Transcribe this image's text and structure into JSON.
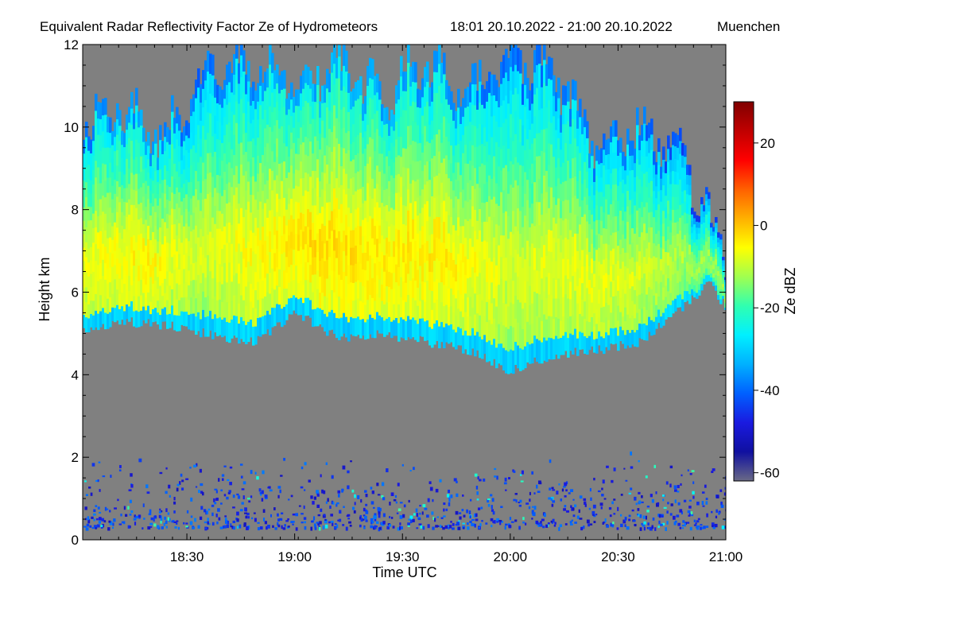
{
  "chart_data": {
    "type": "heatmap",
    "title": "Equivalent Radar Reflectivity Factor Ze of Hydrometeors",
    "period": "18:01 20.10.2022 - 21:00 20.10.2022",
    "location": "Muenchen",
    "xlabel": "Time UTC",
    "ylabel": "Height km",
    "xlim": [
      18.0167,
      21.0
    ],
    "ylim": [
      0,
      12
    ],
    "x_ticks": [
      {
        "value": 18.5,
        "label": "18:30"
      },
      {
        "value": 19.0,
        "label": "19:00"
      },
      {
        "value": 19.5,
        "label": "19:30"
      },
      {
        "value": 20.0,
        "label": "20:00"
      },
      {
        "value": 20.5,
        "label": "20:30"
      },
      {
        "value": 21.0,
        "label": "21:00"
      }
    ],
    "y_ticks": [
      {
        "value": 0,
        "label": "0"
      },
      {
        "value": 2,
        "label": "2"
      },
      {
        "value": 4,
        "label": "4"
      },
      {
        "value": 6,
        "label": "6"
      },
      {
        "value": 8,
        "label": "8"
      },
      {
        "value": 10,
        "label": "10"
      },
      {
        "value": 12,
        "label": "12"
      }
    ],
    "colorbar": {
      "label": "Ze dBZ",
      "range": [
        -62,
        30
      ],
      "ticks": [
        {
          "value": 20,
          "label": "20"
        },
        {
          "value": 0,
          "label": "0"
        },
        {
          "value": -20,
          "label": "-20"
        },
        {
          "value": -40,
          "label": "-40"
        },
        {
          "value": -60,
          "label": "-60"
        }
      ],
      "colors": [
        "#6a6a86",
        "#1010a0",
        "#1a1ae0",
        "#0060ff",
        "#00b0ff",
        "#00f0ff",
        "#30ffb0",
        "#a0ff50",
        "#ffff00",
        "#ffb000",
        "#ff6000",
        "#ff0000",
        "#c00000",
        "#800000"
      ]
    },
    "background_color": "#808080",
    "cloud_layer": {
      "time": [
        18.0167,
        18.2,
        18.4,
        18.6,
        18.8,
        19.0,
        19.2,
        19.4,
        19.6,
        19.8,
        20.0,
        20.2,
        20.4,
        20.6,
        20.8,
        20.92,
        21.0
      ],
      "base_km": [
        5.1,
        5.3,
        5.2,
        5.0,
        4.8,
        5.5,
        4.9,
        5.0,
        4.8,
        4.6,
        4.1,
        4.5,
        4.6,
        4.8,
        5.7,
        6.2,
        5.6
      ],
      "top_km": [
        10.2,
        10.5,
        9.8,
        11.5,
        11.6,
        11.2,
        11.5,
        10.8,
        11.6,
        10.7,
        11.8,
        11.3,
        9.6,
        10.0,
        9.2,
        7.8,
        7.0
      ],
      "core_time": [
        18.05,
        18.3,
        18.55,
        18.8,
        19.1,
        19.4,
        19.7,
        20.0,
        20.3,
        20.6,
        20.85
      ],
      "core_dbz": [
        -6,
        -4,
        -8,
        -5,
        -2,
        -3,
        -4,
        -8,
        -6,
        -8,
        -12
      ]
    },
    "low_echo_layer": {
      "base_km": 0.3,
      "top_km": 2.0,
      "dbz": -45
    }
  }
}
